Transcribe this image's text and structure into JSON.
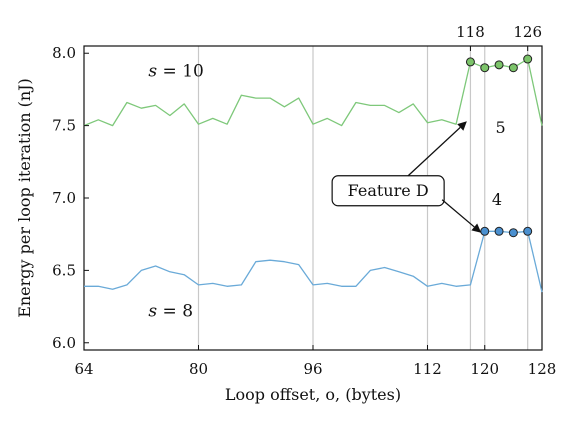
{
  "chart_data": {
    "type": "line",
    "xlabel": "Loop offset, o, (bytes)",
    "ylabel": "Energy per loop iteration (nJ)",
    "xlim": [
      64,
      128
    ],
    "ylim": [
      5.95,
      8.05
    ],
    "xticks": [
      64,
      80,
      96,
      112,
      120,
      128
    ],
    "yticks": [
      6.0,
      6.5,
      7.0,
      7.5,
      8.0
    ],
    "ytick_labels": [
      "6.0",
      "6.5",
      "7.0",
      "7.5",
      "8.0"
    ],
    "top_ticks": [
      118,
      126
    ],
    "vertical_gridlines": [
      80,
      96,
      112,
      118,
      120,
      126
    ],
    "grid": false,
    "colors": {
      "series_s10": "#7ec87a",
      "series_s8": "#6aaad8",
      "marker_s10": "#7cc46a",
      "marker_s8": "#4a90d0"
    },
    "series": [
      {
        "label": "s = 10",
        "x": [
          64,
          66,
          68,
          70,
          72,
          74,
          76,
          78,
          80,
          82,
          84,
          86,
          88,
          90,
          92,
          94,
          96,
          98,
          100,
          102,
          104,
          106,
          108,
          110,
          112,
          114,
          116,
          118,
          120,
          122,
          124,
          126,
          128
        ],
        "y": [
          7.5,
          7.54,
          7.5,
          7.66,
          7.62,
          7.64,
          7.57,
          7.65,
          7.51,
          7.55,
          7.51,
          7.71,
          7.69,
          7.69,
          7.63,
          7.69,
          7.51,
          7.55,
          7.5,
          7.66,
          7.64,
          7.64,
          7.59,
          7.65,
          7.52,
          7.54,
          7.51,
          7.94,
          7.9,
          7.92,
          7.9,
          7.96,
          7.5
        ]
      },
      {
        "label": "s = 8",
        "x": [
          64,
          66,
          68,
          70,
          72,
          74,
          76,
          78,
          80,
          82,
          84,
          86,
          88,
          90,
          92,
          94,
          96,
          98,
          100,
          102,
          104,
          106,
          108,
          110,
          112,
          114,
          116,
          118,
          120,
          122,
          124,
          126,
          128
        ],
        "y": [
          6.39,
          6.39,
          6.37,
          6.4,
          6.5,
          6.53,
          6.49,
          6.47,
          6.4,
          6.41,
          6.39,
          6.4,
          6.56,
          6.57,
          6.56,
          6.54,
          6.4,
          6.41,
          6.39,
          6.39,
          6.5,
          6.52,
          6.49,
          6.46,
          6.39,
          6.41,
          6.39,
          6.4,
          6.77,
          6.77,
          6.76,
          6.77,
          6.35
        ]
      }
    ],
    "highlight_markers": [
      {
        "series": 0,
        "x": [
          118,
          120,
          122,
          124,
          126
        ],
        "y": [
          7.94,
          7.9,
          7.92,
          7.9,
          7.96
        ]
      },
      {
        "series": 1,
        "x": [
          120,
          122,
          124,
          126
        ],
        "y": [
          6.77,
          6.77,
          6.76,
          6.77
        ]
      }
    ],
    "annotations": [
      {
        "text": "5",
        "x": 121.5,
        "y": 7.45
      },
      {
        "text": "4",
        "x": 121.0,
        "y": 6.95
      }
    ],
    "callout": {
      "text": "Feature D",
      "box_center": [
        106.5,
        7.05
      ],
      "arrows_to": [
        [
          117.5,
          7.53
        ],
        [
          119.5,
          6.76
        ]
      ]
    }
  }
}
